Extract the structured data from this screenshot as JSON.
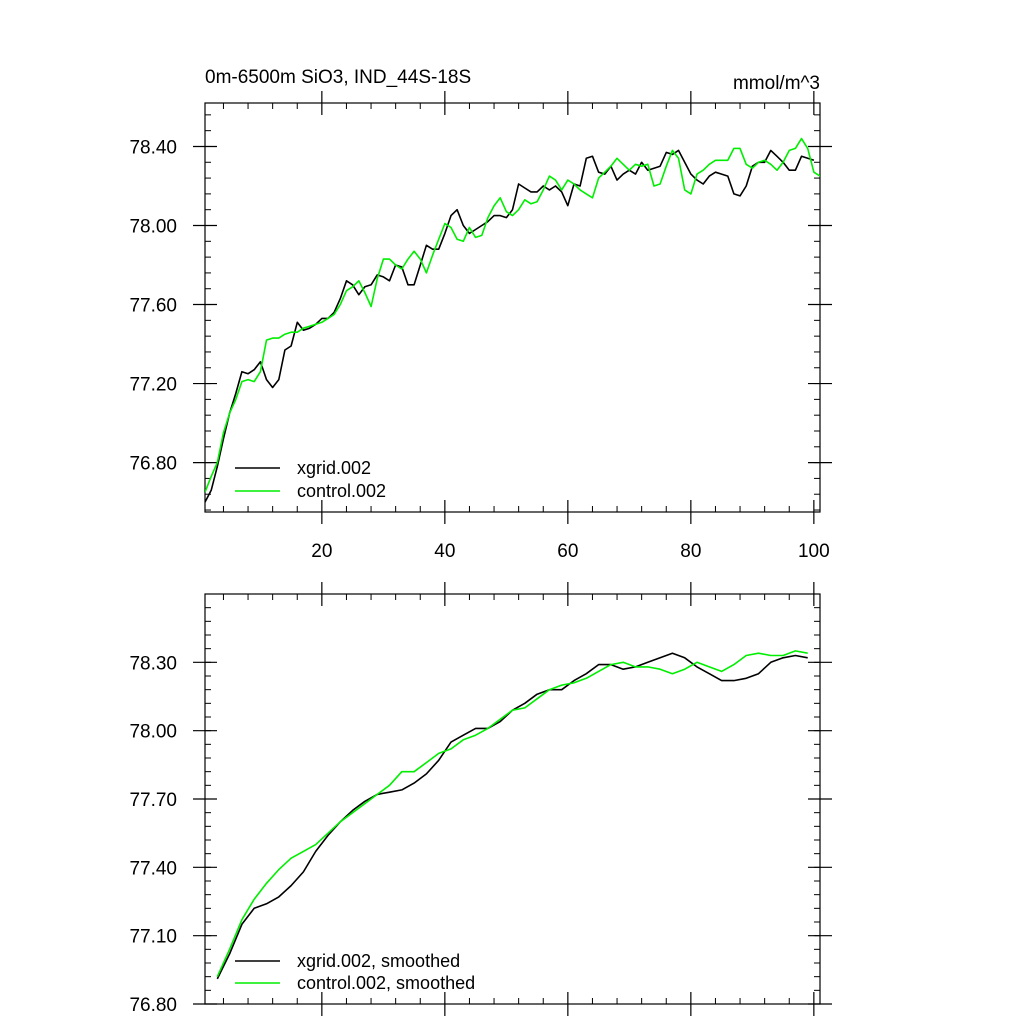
{
  "chart_data": [
    {
      "type": "line",
      "title": "0m-6500m SiO3, IND_44S-18S",
      "units": "mmol/m^3",
      "xlim": [
        1,
        101
      ],
      "ylim": [
        76.55,
        78.62
      ],
      "xticks": [
        20,
        40,
        60,
        80,
        100
      ],
      "xtick_labels": [
        "20",
        "40",
        "60",
        "80",
        "100"
      ],
      "yticks": [
        76.8,
        77.2,
        77.6,
        78.0,
        78.4
      ],
      "ytick_labels": [
        "76.80",
        "77.20",
        "77.60",
        "78.00",
        "78.40"
      ],
      "legend": "bottom-left",
      "series": [
        {
          "name": "xgrid.002",
          "color": "#000000",
          "x": [
            1,
            2,
            3,
            4,
            5,
            6,
            7,
            8,
            9,
            10,
            11,
            12,
            13,
            14,
            15,
            16,
            17,
            18,
            19,
            20,
            21,
            22,
            23,
            24,
            25,
            26,
            27,
            28,
            29,
            30,
            31,
            32,
            33,
            34,
            35,
            36,
            37,
            38,
            39,
            40,
            41,
            42,
            43,
            44,
            45,
            46,
            47,
            48,
            49,
            50,
            51,
            52,
            53,
            54,
            55,
            56,
            57,
            58,
            59,
            60,
            61,
            62,
            63,
            64,
            65,
            66,
            67,
            68,
            69,
            70,
            71,
            72,
            73,
            74,
            75,
            76,
            77,
            78,
            79,
            80,
            81,
            82,
            83,
            84,
            85,
            86,
            87,
            88,
            89,
            90,
            91,
            92,
            93,
            94,
            95,
            96,
            97,
            98,
            99,
            100
          ],
          "values": [
            76.6,
            76.66,
            76.78,
            76.92,
            77.05,
            77.15,
            77.26,
            77.25,
            77.27,
            77.31,
            77.22,
            77.18,
            77.22,
            77.37,
            77.39,
            77.51,
            77.47,
            77.48,
            77.5,
            77.53,
            77.53,
            77.56,
            77.63,
            77.72,
            77.7,
            77.65,
            77.69,
            77.7,
            77.75,
            77.74,
            77.72,
            77.8,
            77.79,
            77.7,
            77.7,
            77.8,
            77.9,
            77.88,
            77.88,
            77.96,
            78.05,
            78.08,
            78.0,
            77.96,
            77.98,
            78.0,
            78.02,
            78.05,
            78.05,
            78.04,
            78.08,
            78.21,
            78.19,
            78.17,
            78.17,
            78.2,
            78.18,
            78.2,
            78.17,
            78.1,
            78.21,
            78.2,
            78.34,
            78.35,
            78.27,
            78.26,
            78.3,
            78.23,
            78.26,
            78.28,
            78.26,
            78.32,
            78.28,
            78.29,
            78.3,
            78.37,
            78.36,
            78.38,
            78.32,
            78.26,
            78.23,
            78.21,
            78.25,
            78.27,
            78.26,
            78.25,
            78.16,
            78.15,
            78.2,
            78.3,
            78.32,
            78.32,
            78.38,
            78.35,
            78.32,
            78.28,
            78.28,
            78.35,
            78.34,
            78.33
          ]
        },
        {
          "name": "control.002",
          "color": "#00ee00",
          "x": [
            1,
            2,
            3,
            4,
            5,
            6,
            7,
            8,
            9,
            10,
            11,
            12,
            13,
            14,
            15,
            16,
            17,
            18,
            19,
            20,
            21,
            22,
            23,
            24,
            25,
            26,
            27,
            28,
            29,
            30,
            31,
            32,
            33,
            34,
            35,
            36,
            37,
            38,
            39,
            40,
            41,
            42,
            43,
            44,
            45,
            46,
            47,
            48,
            49,
            50,
            51,
            52,
            53,
            54,
            55,
            56,
            57,
            58,
            59,
            60,
            61,
            62,
            63,
            64,
            65,
            66,
            67,
            68,
            69,
            70,
            71,
            72,
            73,
            74,
            75,
            76,
            77,
            78,
            79,
            80,
            81,
            82,
            83,
            84,
            85,
            86,
            87,
            88,
            89,
            90,
            91,
            92,
            93,
            94,
            95,
            96,
            97,
            98,
            99,
            100,
            101
          ],
          "values": [
            76.65,
            76.73,
            76.8,
            76.95,
            77.05,
            77.12,
            77.21,
            77.22,
            77.21,
            77.26,
            77.42,
            77.43,
            77.43,
            77.45,
            77.46,
            77.46,
            77.48,
            77.49,
            77.5,
            77.51,
            77.53,
            77.55,
            77.6,
            77.67,
            77.69,
            77.72,
            77.66,
            77.59,
            77.73,
            77.83,
            77.83,
            77.8,
            77.78,
            77.83,
            77.87,
            77.83,
            77.76,
            77.85,
            77.93,
            78.01,
            77.99,
            77.93,
            77.92,
            77.99,
            77.94,
            77.95,
            78.04,
            78.1,
            78.14,
            78.07,
            78.05,
            78.08,
            78.13,
            78.11,
            78.12,
            78.18,
            78.25,
            78.23,
            78.18,
            78.23,
            78.21,
            78.18,
            78.16,
            78.14,
            78.24,
            78.27,
            78.3,
            78.34,
            78.31,
            78.28,
            78.31,
            78.3,
            78.31,
            78.2,
            78.21,
            78.3,
            78.38,
            78.34,
            78.18,
            78.16,
            78.26,
            78.28,
            78.31,
            78.33,
            78.33,
            78.33,
            78.39,
            78.39,
            78.31,
            78.29,
            78.32,
            78.33,
            78.31,
            78.28,
            78.32,
            78.38,
            78.39,
            78.44,
            78.39,
            78.27,
            78.25
          ]
        }
      ]
    },
    {
      "type": "line",
      "xlim": [
        1,
        101
      ],
      "ylim": [
        76.8,
        78.6
      ],
      "xticks": [
        20,
        40,
        60,
        80,
        100
      ],
      "yticks": [
        76.8,
        77.1,
        77.4,
        77.7,
        78.0,
        78.3
      ],
      "ytick_labels": [
        "76.80",
        "77.10",
        "77.40",
        "77.70",
        "78.00",
        "78.30"
      ],
      "legend": "bottom-left",
      "series": [
        {
          "name": "xgrid.002, smoothed",
          "color": "#000000",
          "x": [
            3,
            5,
            7,
            9,
            11,
            13,
            15,
            17,
            19,
            21,
            23,
            25,
            27,
            29,
            31,
            33,
            35,
            37,
            39,
            41,
            43,
            45,
            47,
            49,
            51,
            53,
            55,
            57,
            59,
            61,
            63,
            65,
            67,
            69,
            71,
            73,
            75,
            77,
            79,
            81,
            83,
            85,
            87,
            89,
            91,
            93,
            95,
            97,
            99
          ],
          "values": [
            76.91,
            77.02,
            77.15,
            77.22,
            77.24,
            77.27,
            77.32,
            77.38,
            77.47,
            77.54,
            77.6,
            77.65,
            77.69,
            77.72,
            77.73,
            77.74,
            77.77,
            77.81,
            77.87,
            77.95,
            77.98,
            78.01,
            78.01,
            78.04,
            78.09,
            78.12,
            78.16,
            78.18,
            78.18,
            78.22,
            78.25,
            78.29,
            78.29,
            78.27,
            78.28,
            78.3,
            78.32,
            78.34,
            78.32,
            78.28,
            78.25,
            78.22,
            78.22,
            78.23,
            78.25,
            78.3,
            78.32,
            78.33,
            78.32
          ]
        },
        {
          "name": "control.002, smoothed",
          "color": "#00ee00",
          "x": [
            3,
            5,
            7,
            9,
            11,
            13,
            15,
            17,
            19,
            21,
            23,
            25,
            27,
            29,
            31,
            33,
            35,
            37,
            39,
            41,
            43,
            45,
            47,
            49,
            51,
            53,
            55,
            57,
            59,
            61,
            63,
            65,
            67,
            69,
            71,
            73,
            75,
            77,
            79,
            81,
            83,
            85,
            87,
            89,
            91,
            93,
            95,
            97,
            99
          ],
          "values": [
            76.92,
            77.04,
            77.17,
            77.26,
            77.33,
            77.39,
            77.44,
            77.47,
            77.5,
            77.55,
            77.6,
            77.64,
            77.68,
            77.72,
            77.76,
            77.82,
            77.82,
            77.86,
            77.9,
            77.92,
            77.96,
            77.98,
            78.01,
            78.05,
            78.09,
            78.1,
            78.14,
            78.18,
            78.2,
            78.21,
            78.23,
            78.26,
            78.29,
            78.3,
            78.28,
            78.28,
            78.27,
            78.25,
            78.27,
            78.3,
            78.28,
            78.26,
            78.29,
            78.33,
            78.34,
            78.33,
            78.33,
            78.35,
            78.34
          ]
        }
      ]
    }
  ]
}
